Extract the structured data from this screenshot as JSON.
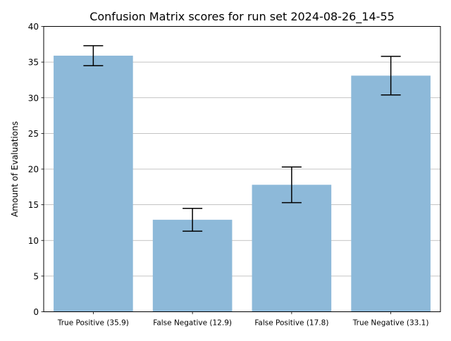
{
  "chart_data": {
    "type": "bar",
    "title": "Confusion Matrix scores for run set 2024-08-26_14-55",
    "xlabel": "",
    "ylabel": "Amount of Evaluations",
    "ylim": [
      0,
      40
    ],
    "yticks": [
      0,
      5,
      10,
      15,
      20,
      25,
      30,
      35,
      40
    ],
    "grid": "y",
    "categories": [
      "True Positive (35.9)",
      "False Negative (12.9)",
      "False Positive (17.8)",
      "True Negative (33.1)"
    ],
    "values": [
      35.9,
      12.9,
      17.8,
      33.1
    ],
    "errors": [
      1.4,
      1.6,
      2.5,
      2.7
    ],
    "bar_color": "#8db9d9",
    "error_color": "#000000",
    "grid_color": "#b0b0b0"
  }
}
